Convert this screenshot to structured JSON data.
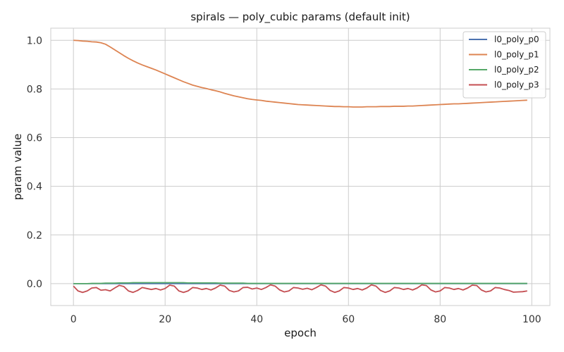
{
  "chart_data": {
    "type": "line",
    "title": "spirals — poly_cubic params (default init)",
    "xlabel": "epoch",
    "ylabel": "param value",
    "xlim": [
      -4.95,
      103.95
    ],
    "ylim": [
      -0.09,
      1.05
    ],
    "xticks": [
      0,
      20,
      40,
      60,
      80,
      100
    ],
    "yticks": [
      0.0,
      0.2,
      0.4,
      0.6,
      0.8,
      1.0
    ],
    "xtick_labels": [
      "0",
      "20",
      "40",
      "60",
      "80",
      "100"
    ],
    "ytick_labels": [
      "0.0",
      "0.2",
      "0.4",
      "0.6",
      "0.8",
      "1.0"
    ],
    "grid": true,
    "legend_position": "top-right",
    "x": [
      0,
      1,
      2,
      3,
      4,
      5,
      6,
      7,
      8,
      9,
      10,
      11,
      12,
      13,
      14,
      15,
      16,
      17,
      18,
      19,
      20,
      21,
      22,
      23,
      24,
      25,
      26,
      27,
      28,
      29,
      30,
      31,
      32,
      33,
      34,
      35,
      36,
      37,
      38,
      39,
      40,
      41,
      42,
      43,
      44,
      45,
      46,
      47,
      48,
      49,
      50,
      51,
      52,
      53,
      54,
      55,
      56,
      57,
      58,
      59,
      60,
      61,
      62,
      63,
      64,
      65,
      66,
      67,
      68,
      69,
      70,
      71,
      72,
      73,
      74,
      75,
      76,
      77,
      78,
      79,
      80,
      81,
      82,
      83,
      84,
      85,
      86,
      87,
      88,
      89,
      90,
      91,
      92,
      93,
      94,
      95,
      96,
      97,
      98,
      99
    ],
    "series": [
      {
        "name": "l0_poly_p0",
        "color": "#4c72b0",
        "values": [
          0,
          0,
          0,
          0,
          0,
          0,
          0,
          0,
          0,
          0,
          0,
          0,
          0,
          0,
          0,
          0,
          0,
          0,
          0,
          0,
          0,
          0,
          0,
          0,
          0,
          0,
          0,
          0,
          0,
          0,
          0,
          0,
          0,
          0,
          0,
          0,
          0,
          0,
          0,
          0,
          0,
          0,
          0,
          0,
          0,
          0,
          0,
          0,
          0,
          0,
          0,
          0,
          0,
          0,
          0,
          0,
          0,
          0,
          0,
          0,
          0,
          0,
          0,
          0,
          0,
          0,
          0,
          0,
          0,
          0,
          0,
          0,
          0,
          0,
          0,
          0,
          0,
          0,
          0,
          0,
          0,
          0,
          0,
          0,
          0,
          0,
          0,
          0,
          0,
          0,
          0,
          0,
          0,
          0,
          0,
          0,
          0,
          0,
          0,
          0
        ]
      },
      {
        "name": "l0_poly_p1",
        "color": "#dd8452",
        "values": [
          1.0,
          0.999,
          0.997,
          0.996,
          0.994,
          0.993,
          0.99,
          0.984,
          0.973,
          0.961,
          0.949,
          0.937,
          0.926,
          0.916,
          0.907,
          0.899,
          0.892,
          0.885,
          0.878,
          0.87,
          0.862,
          0.854,
          0.846,
          0.838,
          0.83,
          0.823,
          0.816,
          0.811,
          0.806,
          0.802,
          0.797,
          0.793,
          0.788,
          0.782,
          0.777,
          0.772,
          0.768,
          0.764,
          0.76,
          0.757,
          0.755,
          0.753,
          0.75,
          0.748,
          0.746,
          0.744,
          0.742,
          0.74,
          0.738,
          0.736,
          0.735,
          0.734,
          0.733,
          0.732,
          0.731,
          0.73,
          0.729,
          0.728,
          0.728,
          0.727,
          0.727,
          0.726,
          0.726,
          0.726,
          0.727,
          0.727,
          0.727,
          0.728,
          0.728,
          0.728,
          0.729,
          0.729,
          0.729,
          0.73,
          0.73,
          0.731,
          0.732,
          0.733,
          0.734,
          0.735,
          0.736,
          0.737,
          0.738,
          0.739,
          0.739,
          0.74,
          0.741,
          0.742,
          0.743,
          0.744,
          0.745,
          0.746,
          0.747,
          0.748,
          0.749,
          0.75,
          0.751,
          0.752,
          0.753,
          0.754
        ]
      },
      {
        "name": "l0_poly_p2",
        "color": "#55a868",
        "values": [
          0,
          0,
          0,
          0,
          0.001,
          0.001,
          0.001,
          0.002,
          0.002,
          0.002,
          0.003,
          0.003,
          0.003,
          0.004,
          0.004,
          0.004,
          0.004,
          0.004,
          0.004,
          0.004,
          0.004,
          0.004,
          0.004,
          0.004,
          0.004,
          0.003,
          0.003,
          0.003,
          0.003,
          0.003,
          0.003,
          0.003,
          0.002,
          0.002,
          0.002,
          0.002,
          0.002,
          0.002,
          0.001,
          0.001,
          0.001,
          0.001,
          0.001,
          0.001,
          0.001,
          0.001,
          0.001,
          0.001,
          0.001,
          0.001,
          0.001,
          0.001,
          0.001,
          0.001,
          0.001,
          0.001,
          0.001,
          0.001,
          0.001,
          0.001,
          0.001,
          0.001,
          0.001,
          0.001,
          0.001,
          0.001,
          0.001,
          0.001,
          0.001,
          0.001,
          0.001,
          0.001,
          0.001,
          0.001,
          0.001,
          0.001,
          0.001,
          0.001,
          0.001,
          0.001,
          0.001,
          0.001,
          0.001,
          0.001,
          0.001,
          0.001,
          0.001,
          0.001,
          0.001,
          0.001,
          0.001,
          0.001,
          0.001,
          0.001,
          0.001,
          0.001,
          0.001,
          0.001,
          0.001,
          0.001
        ]
      },
      {
        "name": "l0_poly_p3",
        "color": "#c44e52",
        "values": [
          -0.01,
          -0.03,
          -0.036,
          -0.03,
          -0.018,
          -0.016,
          -0.027,
          -0.025,
          -0.03,
          -0.018,
          -0.007,
          -0.012,
          -0.03,
          -0.036,
          -0.028,
          -0.016,
          -0.02,
          -0.024,
          -0.02,
          -0.026,
          -0.02,
          -0.006,
          -0.01,
          -0.03,
          -0.036,
          -0.03,
          -0.016,
          -0.018,
          -0.024,
          -0.02,
          -0.026,
          -0.018,
          -0.006,
          -0.01,
          -0.028,
          -0.034,
          -0.03,
          -0.016,
          -0.015,
          -0.022,
          -0.018,
          -0.024,
          -0.016,
          -0.005,
          -0.01,
          -0.026,
          -0.034,
          -0.03,
          -0.016,
          -0.018,
          -0.023,
          -0.019,
          -0.025,
          -0.016,
          -0.005,
          -0.01,
          -0.028,
          -0.036,
          -0.03,
          -0.016,
          -0.018,
          -0.024,
          -0.02,
          -0.026,
          -0.018,
          -0.005,
          -0.01,
          -0.028,
          -0.036,
          -0.03,
          -0.016,
          -0.018,
          -0.024,
          -0.02,
          -0.026,
          -0.018,
          -0.005,
          -0.008,
          -0.026,
          -0.034,
          -0.03,
          -0.016,
          -0.018,
          -0.024,
          -0.02,
          -0.026,
          -0.018,
          -0.006,
          -0.008,
          -0.026,
          -0.034,
          -0.03,
          -0.016,
          -0.018,
          -0.024,
          -0.028,
          -0.035,
          -0.034,
          -0.033,
          -0.03
        ]
      }
    ]
  }
}
